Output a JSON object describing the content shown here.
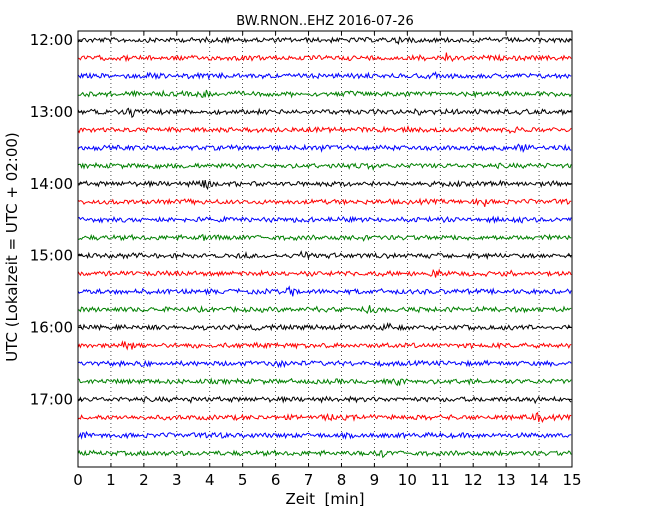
{
  "chart_data": {
    "type": "line",
    "title": "BW.RNON..EHZ 2016-07-26",
    "xlabel": "Zeit  [min]",
    "ylabel": "UTC (Lokalzeit = UTC + 02:00)",
    "xlim": [
      0,
      15
    ],
    "x_ticks": [
      "0",
      "1",
      "2",
      "3",
      "4",
      "5",
      "6",
      "7",
      "8",
      "9",
      "10",
      "11",
      "12",
      "13",
      "14",
      "15"
    ],
    "y_tick_labels": [
      "12:00",
      "13:00",
      "14:00",
      "15:00",
      "16:00",
      "17:00"
    ],
    "grid": {
      "x": true,
      "y": false,
      "style": "dotted"
    },
    "trace_interval_minutes": 15,
    "trace_colors": [
      "#000000",
      "#ff0000",
      "#0000ff",
      "#008000"
    ],
    "traces": [
      {
        "start": "12:00"
      },
      {
        "start": "12:15"
      },
      {
        "start": "12:30"
      },
      {
        "start": "12:45"
      },
      {
        "start": "13:00"
      },
      {
        "start": "13:15"
      },
      {
        "start": "13:30"
      },
      {
        "start": "13:45"
      },
      {
        "start": "14:00"
      },
      {
        "start": "14:15"
      },
      {
        "start": "14:30"
      },
      {
        "start": "14:45"
      },
      {
        "start": "15:00"
      },
      {
        "start": "15:15"
      },
      {
        "start": "15:30"
      },
      {
        "start": "15:45"
      },
      {
        "start": "16:00"
      },
      {
        "start": "16:15"
      },
      {
        "start": "16:30"
      },
      {
        "start": "16:45"
      },
      {
        "start": "17:00"
      },
      {
        "start": "17:15"
      },
      {
        "start": "17:30"
      },
      {
        "start": "17:45"
      }
    ]
  }
}
